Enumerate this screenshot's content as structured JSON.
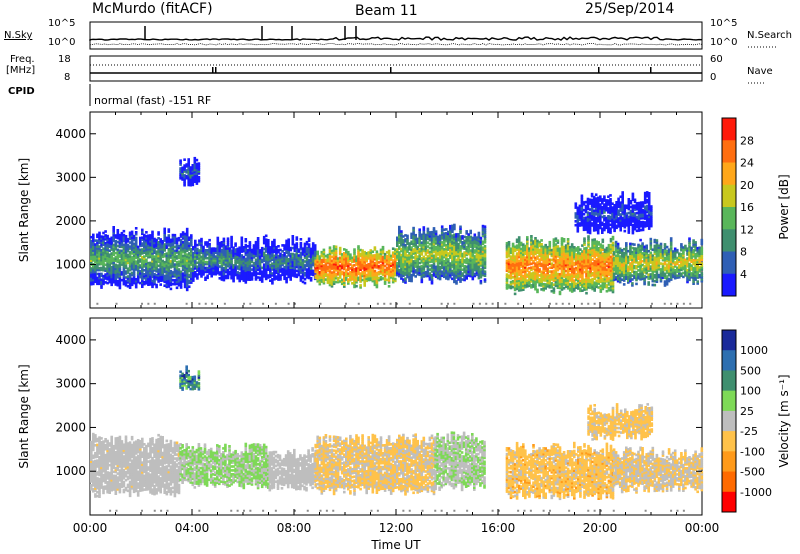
{
  "header": {
    "station": "McMurdo (fitACF)",
    "beam": "Beam 11",
    "date": "25/Sep/2014"
  },
  "top_panels": {
    "nsky_label": "N.Sky",
    "nsky_ticks": [
      "10^5",
      "10^0"
    ],
    "nsearch_label": "N.Search",
    "nsearch_ticks": [
      "10^5",
      "10^0"
    ],
    "freq_label": "Freq.",
    "freq_unit": "[MHz]",
    "freq_ticks": [
      "18",
      "8"
    ],
    "nave_label": "Nave",
    "nave_ticks": [
      "60",
      "0"
    ],
    "cpid_label": "CPID",
    "cpid_text": "normal (fast) -151 RF"
  },
  "colors": {
    "power_scale": [
      "#1a1aff",
      "#2f5fb5",
      "#3f8f6f",
      "#59b65a",
      "#c8c81e",
      "#ffa71a",
      "#ff6e10",
      "#ff1a0a"
    ],
    "velocity_scale": [
      "#ff0000",
      "#ff6a00",
      "#ff9a1a",
      "#ffc24a",
      "#bebebe",
      "#7ed957",
      "#3f8f6f",
      "#2d6fb0",
      "#1a2a9a"
    ],
    "ground": "#8a8a8a"
  },
  "chart_data": [
    {
      "type": "heatmap",
      "panel": "power",
      "xlabel": "",
      "ylabel": "Slant Range [km]",
      "xlim_hours": [
        0,
        24
      ],
      "ylim_km": [
        0,
        4500
      ],
      "y_ticks": [
        "1000",
        "2000",
        "3000",
        "4000"
      ],
      "colorbar": {
        "label": "Power [dB]",
        "ticks": [
          "4",
          "8",
          "12",
          "16",
          "20",
          "24",
          "28"
        ],
        "range": [
          0,
          32
        ]
      },
      "scatter_patches": [
        {
          "t_start": 0.0,
          "t_end": 4.0,
          "r_low": 500,
          "r_high": 1700,
          "value": 14
        },
        {
          "t_start": 4.0,
          "t_end": 5.5,
          "r_low": 700,
          "r_high": 1500,
          "value": 12
        },
        {
          "t_start": 5.5,
          "t_end": 8.8,
          "r_low": 650,
          "r_high": 1500,
          "value": 10
        },
        {
          "t_start": 8.8,
          "t_end": 12.0,
          "r_low": 550,
          "r_high": 1300,
          "value": 28
        },
        {
          "t_start": 12.0,
          "t_end": 15.5,
          "r_low": 650,
          "r_high": 1750,
          "value": 18
        },
        {
          "t_start": 16.3,
          "t_end": 20.5,
          "r_low": 400,
          "r_high": 1500,
          "value": 26
        },
        {
          "t_start": 20.5,
          "t_end": 24.0,
          "r_low": 600,
          "r_high": 1450,
          "value": 20
        },
        {
          "t_start": 3.5,
          "t_end": 4.3,
          "r_low": 2900,
          "r_high": 3300,
          "value": 8
        },
        {
          "t_start": 19.0,
          "t_end": 22.0,
          "r_low": 1800,
          "r_high": 2500,
          "value": 6
        }
      ]
    },
    {
      "type": "heatmap",
      "panel": "velocity",
      "xlabel": "Time UT",
      "ylabel": "Slant Range [km]",
      "xlim_hours": [
        0,
        24
      ],
      "ylim_km": [
        0,
        4500
      ],
      "x_ticks": [
        "00:00",
        "04:00",
        "08:00",
        "12:00",
        "16:00",
        "20:00",
        "00:00"
      ],
      "y_ticks": [
        "1000",
        "2000",
        "3000",
        "4000"
      ],
      "colorbar": {
        "label": "Velocity [m s⁻¹]",
        "ticks": [
          "1000",
          "500",
          "100",
          "25",
          "-25",
          "-100",
          "-500",
          "-1000"
        ],
        "range": [
          -1200,
          1200
        ]
      },
      "scatter_patches": [
        {
          "t_start": 0.0,
          "t_end": 3.5,
          "r_low": 500,
          "r_high": 1700,
          "value": -80
        },
        {
          "t_start": 3.5,
          "t_end": 7.0,
          "r_low": 700,
          "r_high": 1500,
          "value": 150
        },
        {
          "t_start": 7.0,
          "t_end": 8.8,
          "r_low": 650,
          "r_high": 1400,
          "value": -60
        },
        {
          "t_start": 8.8,
          "t_end": 13.5,
          "r_low": 550,
          "r_high": 1700,
          "value": -150
        },
        {
          "t_start": 13.5,
          "t_end": 15.5,
          "r_low": 650,
          "r_high": 1750,
          "value": 120
        },
        {
          "t_start": 16.3,
          "t_end": 20.5,
          "r_low": 450,
          "r_high": 1500,
          "value": -250
        },
        {
          "t_start": 20.5,
          "t_end": 24.0,
          "r_low": 600,
          "r_high": 1400,
          "value": -120
        },
        {
          "t_start": 3.5,
          "t_end": 4.3,
          "r_low": 2900,
          "r_high": 3300,
          "value": 600
        },
        {
          "t_start": 19.5,
          "t_end": 22.0,
          "r_low": 1800,
          "r_high": 2400,
          "value": -200
        }
      ]
    }
  ]
}
